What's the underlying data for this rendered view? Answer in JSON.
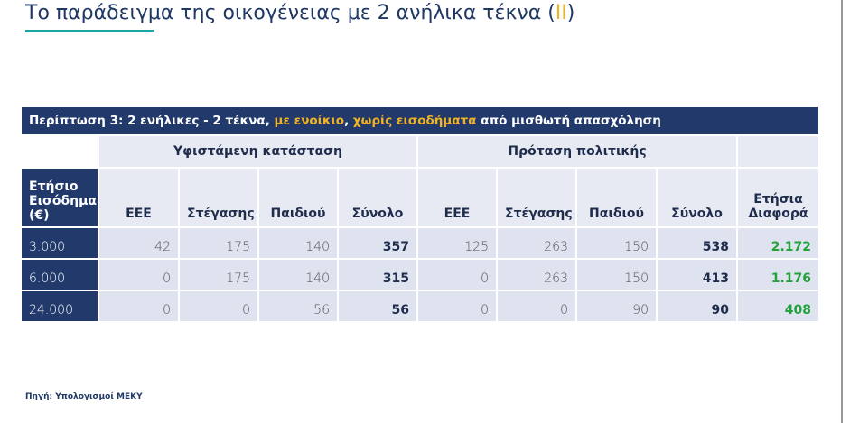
{
  "header": {
    "title": [
      "Το παράδειγμα της οικογένειας με 2 ανήλικα τέκνα (",
      "II",
      ")"
    ]
  },
  "table": {
    "caption": [
      "Περίπτωση 3: 2 ενήλικες - 2 τέκνα, ",
      "με ενοίκιο",
      ", ",
      "χωρίς εισοδήματα",
      " από μισθωτή απασχόληση"
    ],
    "groups": [
      "Υφιστάμενη κατάσταση",
      "Πρόταση πολιτικής"
    ],
    "columns": [
      "Ετήσιο Εισόδημα (€)",
      "ΕΕΕ",
      "Στέγασης",
      "Παιδιού",
      "Σύνολο",
      "ΕΕΕ",
      "Στέγασης",
      "Παιδιού",
      "Σύνολο",
      "Ετήσια Διαφορά"
    ],
    "rows": [
      [
        "3.000",
        "42",
        "175",
        "140",
        "357",
        "125",
        "263",
        "150",
        "538",
        "2.172"
      ],
      [
        "6.000",
        "0",
        "175",
        "140",
        "315",
        "0",
        "263",
        "150",
        "413",
        "1.176"
      ],
      [
        "24.000",
        "0",
        "0",
        "56",
        "56",
        "0",
        "0",
        "90",
        "90",
        "408"
      ]
    ]
  },
  "footer": {
    "source": "Πηγή: Υπολογισμοί ΜΕΚΥ"
  }
}
